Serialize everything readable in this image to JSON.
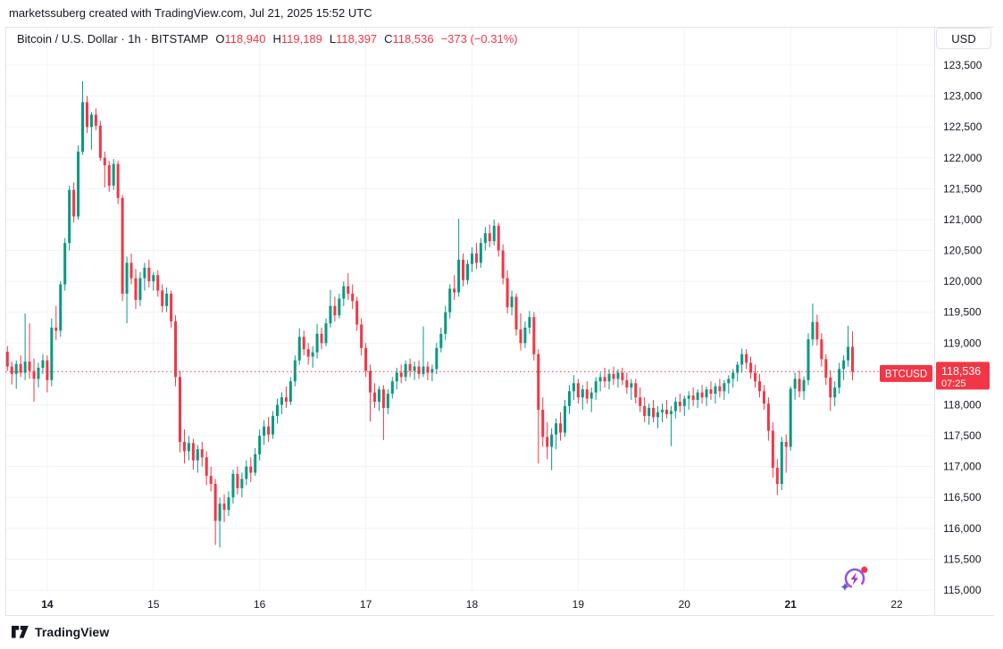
{
  "attribution": {
    "text": "marketssuberg created with TradingView.com, Jul 21, 2025 15:52 UTC"
  },
  "legend": {
    "symbol_title": "Bitcoin / U.S. Dollar · 1h · BITSTAMP",
    "open_label": "O",
    "open": "118,940",
    "high_label": "H",
    "high": "119,189",
    "low_label": "L",
    "low": "118,397",
    "close_label": "C",
    "close": "118,536",
    "change": "−373 (−0.31%)"
  },
  "price_axis": {
    "currency_button": "USD",
    "symbol_tag": "BTCUSD",
    "price_tag": {
      "price": "118,536",
      "countdown": "07:25"
    },
    "ticks": [
      {
        "value": 123500,
        "label": "123,500"
      },
      {
        "value": 123000,
        "label": "123,000"
      },
      {
        "value": 122500,
        "label": "122,500"
      },
      {
        "value": 122000,
        "label": "122,000"
      },
      {
        "value": 121500,
        "label": "121,500"
      },
      {
        "value": 121000,
        "label": "121,000"
      },
      {
        "value": 120500,
        "label": "120,500"
      },
      {
        "value": 120000,
        "label": "120,000"
      },
      {
        "value": 119500,
        "label": "119,500"
      },
      {
        "value": 119000,
        "label": "119,000"
      },
      {
        "value": 118500,
        "label": ""
      },
      {
        "value": 118000,
        "label": "118,000"
      },
      {
        "value": 117500,
        "label": "117,500"
      },
      {
        "value": 117000,
        "label": "117,000"
      },
      {
        "value": 116500,
        "label": "116,500"
      },
      {
        "value": 116000,
        "label": "116,000"
      },
      {
        "value": 115500,
        "label": "115,500"
      },
      {
        "value": 115000,
        "label": "115,000"
      }
    ]
  },
  "time_axis": {
    "ticks": [
      {
        "label": "14",
        "candle_index": 9,
        "bold": true
      },
      {
        "label": "15",
        "candle_index": 33,
        "bold": false
      },
      {
        "label": "16",
        "candle_index": 57,
        "bold": false
      },
      {
        "label": "17",
        "candle_index": 81,
        "bold": false
      },
      {
        "label": "18",
        "candle_index": 105,
        "bold": false
      },
      {
        "label": "19",
        "candle_index": 129,
        "bold": false
      },
      {
        "label": "20",
        "candle_index": 153,
        "bold": false
      },
      {
        "label": "21",
        "candle_index": 177,
        "bold": true
      },
      {
        "label": "22",
        "candle_index": 201,
        "bold": false
      }
    ]
  },
  "footer": {
    "brand": "TradingView"
  },
  "colors": {
    "up": "#089981",
    "down": "#F23645",
    "accent_red": "#F23645",
    "grid": "#F0F3FA",
    "border": "#E0E3EB",
    "axis_text": "#131722",
    "tag_text": "#FFFFFF",
    "sparkle_purple": "#9C27B0",
    "sparkle_blue": "#5B5BD6"
  },
  "chart_data": {
    "type": "candlestick",
    "title": "Bitcoin / U.S. Dollar",
    "symbol": "BTCUSD",
    "exchange": "BITSTAMP",
    "interval": "1h",
    "current_price": 118536,
    "current_bar": {
      "open": 118940,
      "high": 119189,
      "low": 118397,
      "close": 118536,
      "change": -373,
      "change_pct": -0.31
    },
    "countdown": "07:25",
    "x_axis_day_labels": [
      "14",
      "15",
      "16",
      "17",
      "18",
      "19",
      "20",
      "21",
      "22"
    ],
    "ylim": [
      114800,
      123650
    ],
    "price_step": 500,
    "legend_note": "columns are [open, high, low, close]; hourly bars Jul 13 15:00 UTC through Jul 21 14:00 UTC, estimated from chart pixels",
    "candles": [
      [
        118860,
        118950,
        118550,
        118620
      ],
      [
        118620,
        118700,
        118330,
        118500
      ],
      [
        118500,
        118720,
        118260,
        118660
      ],
      [
        118660,
        118800,
        118450,
        118520
      ],
      [
        118520,
        119480,
        118400,
        118700
      ],
      [
        118700,
        119320,
        118420,
        118550
      ],
      [
        118550,
        118750,
        118050,
        118420
      ],
      [
        118420,
        118680,
        118280,
        118600
      ],
      [
        118600,
        118820,
        118500,
        118720
      ],
      [
        118720,
        118800,
        118200,
        118400
      ],
      [
        118400,
        119400,
        118300,
        119250
      ],
      [
        119250,
        119600,
        119050,
        119200
      ],
      [
        119200,
        120000,
        119100,
        119950
      ],
      [
        119950,
        120700,
        119850,
        120620
      ],
      [
        120620,
        121550,
        120500,
        121480
      ],
      [
        121480,
        121600,
        120950,
        121050
      ],
      [
        121050,
        122200,
        121000,
        122100
      ],
      [
        122100,
        123240,
        122050,
        122900
      ],
      [
        122900,
        123000,
        122400,
        122500
      ],
      [
        122500,
        122740,
        122130,
        122700
      ],
      [
        122700,
        122800,
        122450,
        122520
      ],
      [
        122520,
        122600,
        121950,
        122000
      ],
      [
        122000,
        122100,
        121520,
        121880
      ],
      [
        121880,
        121950,
        121450,
        121550
      ],
      [
        121550,
        121980,
        121480,
        121900
      ],
      [
        121900,
        121950,
        121250,
        121350
      ],
      [
        121350,
        121400,
        119680,
        119800
      ],
      [
        119800,
        120400,
        119320,
        120300
      ],
      [
        120300,
        120450,
        119950,
        120050
      ],
      [
        120050,
        120200,
        119550,
        119700
      ],
      [
        119700,
        120150,
        119600,
        120050
      ],
      [
        120050,
        120300,
        119850,
        120220
      ],
      [
        120220,
        120350,
        119900,
        120000
      ],
      [
        120000,
        120150,
        119850,
        120100
      ],
      [
        120100,
        120180,
        119750,
        119850
      ],
      [
        119850,
        119950,
        119500,
        119600
      ],
      [
        119600,
        119900,
        119500,
        119800
      ],
      [
        119800,
        119850,
        119250,
        119350
      ],
      [
        119350,
        119450,
        118300,
        118450
      ],
      [
        118450,
        118550,
        117230,
        117400
      ],
      [
        117400,
        117600,
        117050,
        117250
      ],
      [
        117250,
        117500,
        117100,
        117380
      ],
      [
        117380,
        117450,
        116950,
        117100
      ],
      [
        117100,
        117350,
        116900,
        117280
      ],
      [
        117280,
        117400,
        117000,
        117150
      ],
      [
        117150,
        117250,
        116700,
        116850
      ],
      [
        116850,
        117000,
        116600,
        116720
      ],
      [
        116720,
        116800,
        115730,
        116120
      ],
      [
        116120,
        116500,
        115690,
        116400
      ],
      [
        116400,
        116550,
        116100,
        116300
      ],
      [
        116300,
        116600,
        116200,
        116500
      ],
      [
        116500,
        116950,
        116400,
        116880
      ],
      [
        116880,
        117000,
        116550,
        116650
      ],
      [
        116650,
        116900,
        116500,
        116800
      ],
      [
        116800,
        117100,
        116700,
        117000
      ],
      [
        117000,
        117150,
        116750,
        116900
      ],
      [
        116900,
        117300,
        116850,
        117200
      ],
      [
        117200,
        117600,
        117100,
        117500
      ],
      [
        117500,
        117750,
        117350,
        117650
      ],
      [
        117650,
        117800,
        117400,
        117520
      ],
      [
        117520,
        117900,
        117450,
        117820
      ],
      [
        117820,
        118100,
        117700,
        118000
      ],
      [
        118000,
        118200,
        117850,
        118120
      ],
      [
        118120,
        118300,
        117950,
        118050
      ],
      [
        118050,
        118450,
        118000,
        118380
      ],
      [
        118380,
        118800,
        118300,
        118720
      ],
      [
        118720,
        119240,
        118650,
        119100
      ],
      [
        119100,
        119200,
        118800,
        118900
      ],
      [
        118900,
        119000,
        118650,
        118780
      ],
      [
        118780,
        118950,
        118600,
        118850
      ],
      [
        118850,
        119310,
        118750,
        119150
      ],
      [
        119150,
        119250,
        118900,
        119000
      ],
      [
        119000,
        119400,
        118950,
        119320
      ],
      [
        119320,
        119860,
        119250,
        119600
      ],
      [
        119600,
        119750,
        119350,
        119450
      ],
      [
        119450,
        119800,
        119400,
        119720
      ],
      [
        119720,
        120000,
        119600,
        119920
      ],
      [
        119920,
        120130,
        119700,
        119800
      ],
      [
        119800,
        119950,
        119550,
        119680
      ],
      [
        119680,
        119750,
        119200,
        119300
      ],
      [
        119300,
        119400,
        118800,
        118920
      ],
      [
        118920,
        119000,
        118450,
        118550
      ],
      [
        118550,
        118650,
        117730,
        118200
      ],
      [
        118200,
        118350,
        117950,
        118050
      ],
      [
        118050,
        118300,
        117900,
        118250
      ],
      [
        118250,
        118320,
        117430,
        117950
      ],
      [
        117950,
        118250,
        117850,
        118180
      ],
      [
        118180,
        118450,
        118100,
        118380
      ],
      [
        118380,
        118600,
        118250,
        118520
      ],
      [
        118520,
        118650,
        118350,
        118450
      ],
      [
        118450,
        118720,
        118380,
        118660
      ],
      [
        118660,
        118750,
        118450,
        118550
      ],
      [
        118550,
        118700,
        118400,
        118620
      ],
      [
        118620,
        118720,
        118420,
        118500
      ],
      [
        118500,
        119270,
        118450,
        118620
      ],
      [
        118620,
        118700,
        118400,
        118520
      ],
      [
        118520,
        118650,
        118380,
        118580
      ],
      [
        118580,
        119000,
        118500,
        118920
      ],
      [
        118920,
        119250,
        118850,
        119150
      ],
      [
        119150,
        119600,
        119050,
        119500
      ],
      [
        119500,
        119950,
        119400,
        119880
      ],
      [
        119880,
        120100,
        119700,
        119820
      ],
      [
        119820,
        121010,
        119750,
        120350
      ],
      [
        120350,
        120450,
        119920,
        120020
      ],
      [
        120020,
        120350,
        119950,
        120280
      ],
      [
        120280,
        120550,
        120150,
        120450
      ],
      [
        120450,
        120620,
        120200,
        120300
      ],
      [
        120300,
        120700,
        120220,
        120620
      ],
      [
        120620,
        120880,
        120500,
        120780
      ],
      [
        120780,
        120920,
        120550,
        120650
      ],
      [
        120650,
        121000,
        120580,
        120900
      ],
      [
        120900,
        120950,
        120400,
        120500
      ],
      [
        120500,
        120600,
        119950,
        120050
      ],
      [
        120050,
        120180,
        119480,
        119580
      ],
      [
        119580,
        119850,
        119450,
        119750
      ],
      [
        119750,
        119800,
        119120,
        119220
      ],
      [
        119220,
        119480,
        118880,
        119000
      ],
      [
        119000,
        119350,
        118920,
        119250
      ],
      [
        119250,
        119520,
        119150,
        119420
      ],
      [
        119420,
        119500,
        118720,
        118820
      ],
      [
        118820,
        118900,
        117050,
        117920
      ],
      [
        117920,
        118120,
        117320,
        117480
      ],
      [
        117480,
        117720,
        117120,
        117320
      ],
      [
        117320,
        117620,
        116940,
        117520
      ],
      [
        117520,
        117780,
        117280,
        117700
      ],
      [
        117700,
        117880,
        117420,
        117550
      ],
      [
        117550,
        118080,
        117480,
        117980
      ],
      [
        117980,
        118320,
        117850,
        118220
      ],
      [
        118220,
        118480,
        118080,
        118350
      ],
      [
        118350,
        118420,
        118020,
        118120
      ],
      [
        118120,
        118320,
        117920,
        118250
      ],
      [
        118250,
        118380,
        118020,
        118100
      ],
      [
        118100,
        118280,
        117880,
        118200
      ],
      [
        118200,
        118450,
        118080,
        118380
      ],
      [
        118380,
        118520,
        118220,
        118450
      ],
      [
        118450,
        118600,
        118280,
        118380
      ],
      [
        118380,
        118580,
        118250,
        118500
      ],
      [
        118500,
        118620,
        118320,
        118420
      ],
      [
        118420,
        118580,
        118280,
        118520
      ],
      [
        118520,
        118600,
        118320,
        118400
      ],
      [
        118400,
        118520,
        118180,
        118280
      ],
      [
        118280,
        118420,
        118080,
        118350
      ],
      [
        118350,
        118420,
        118020,
        118120
      ],
      [
        118120,
        118280,
        117880,
        117980
      ],
      [
        117980,
        118120,
        117720,
        117820
      ],
      [
        117820,
        118020,
        117680,
        117950
      ],
      [
        117950,
        118080,
        117720,
        117800
      ],
      [
        117800,
        117980,
        117620,
        117880
      ],
      [
        117880,
        118020,
        117720,
        117920
      ],
      [
        117920,
        118080,
        117780,
        117850
      ],
      [
        117850,
        117980,
        117330,
        117900
      ],
      [
        117900,
        118120,
        117780,
        118050
      ],
      [
        118050,
        118180,
        117880,
        117980
      ],
      [
        117980,
        118150,
        117820,
        118100
      ],
      [
        118100,
        118220,
        117920,
        118150
      ],
      [
        118150,
        118280,
        117980,
        118080
      ],
      [
        118080,
        118250,
        117950,
        118200
      ],
      [
        118200,
        118320,
        118020,
        118120
      ],
      [
        118120,
        118300,
        117980,
        118250
      ],
      [
        118250,
        118380,
        118080,
        118180
      ],
      [
        118180,
        118350,
        118020,
        118300
      ],
      [
        118300,
        118420,
        118120,
        118220
      ],
      [
        118220,
        118400,
        118080,
        118350
      ],
      [
        118350,
        118480,
        118180,
        118420
      ],
      [
        118420,
        118580,
        118280,
        118520
      ],
      [
        118520,
        118700,
        118380,
        118650
      ],
      [
        118650,
        118910,
        118520,
        118820
      ],
      [
        118820,
        118900,
        118580,
        118680
      ],
      [
        118680,
        118780,
        118420,
        118520
      ],
      [
        118520,
        118650,
        118280,
        118380
      ],
      [
        118380,
        118500,
        118120,
        118220
      ],
      [
        118220,
        118320,
        117920,
        118020
      ],
      [
        118020,
        118120,
        117420,
        117580
      ],
      [
        117580,
        117720,
        116820,
        116980
      ],
      [
        116980,
        117120,
        116540,
        116720
      ],
      [
        116720,
        117480,
        116620,
        117400
      ],
      [
        117400,
        117520,
        116900,
        117320
      ],
      [
        117320,
        118300,
        117260,
        118260
      ],
      [
        118260,
        118520,
        118080,
        118420
      ],
      [
        118420,
        118560,
        118120,
        118220
      ],
      [
        118220,
        118460,
        118080,
        118400
      ],
      [
        118400,
        119160,
        118320,
        119060
      ],
      [
        119060,
        119640,
        118960,
        119340
      ],
      [
        119340,
        119460,
        118960,
        119060
      ],
      [
        119060,
        119160,
        118620,
        118740
      ],
      [
        118740,
        118820,
        118320,
        118440
      ],
      [
        118440,
        118560,
        117900,
        118120
      ],
      [
        118120,
        118380,
        117980,
        118280
      ],
      [
        118280,
        118680,
        118180,
        118580
      ],
      [
        118580,
        118800,
        118400,
        118720
      ],
      [
        118720,
        119280,
        118620,
        118940
      ],
      [
        118940,
        119189,
        118397,
        118536
      ]
    ]
  }
}
